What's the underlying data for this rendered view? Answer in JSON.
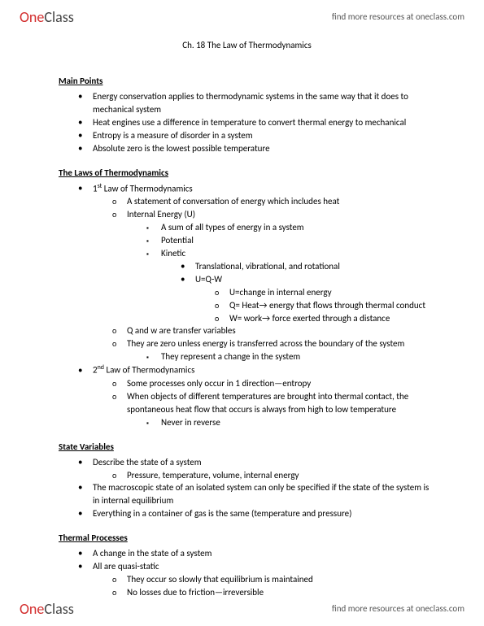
{
  "brand": {
    "one": "One",
    "class": "Class"
  },
  "resources_link": "find more resources at oneclass.com",
  "title": "Ch. 18 The Law of Thermodynamics",
  "sections": {
    "main_points": {
      "heading": "Main Points",
      "items": [
        "Energy conservation applies to thermodynamic systems in the same way that it does to mechanical system",
        "Heat engines use a difference in temperature to convert thermal energy to mechanical",
        "Entropy is a measure of disorder in a system",
        "Absolute zero is the lowest possible temperature"
      ]
    },
    "laws": {
      "heading": "The Laws of Thermodynamics",
      "first": {
        "label_pre": "1",
        "label_sup": "st",
        "label_post": " Law of Thermodynamics",
        "b1": "A statement of conversation of energy which includes heat",
        "b2": "Internal Energy (U)",
        "b2a": "A sum of all types of energy in a system",
        "b2b": "Potential",
        "b2c": "Kinetic",
        "b2c1": "Translational, vibrational, and rotational",
        "b2c2": "U=Q-W",
        "b2c2a": "U=change in internal energy",
        "b2c2b": "Q= Heat→ energy that flows through thermal conduct",
        "b2c2c": "W= work→ force exerted through a distance",
        "b3": "Q and w are transfer variables",
        "b4": "They are zero unless energy is transferred across the boundary of the system",
        "b4a": "They represent a change in the system"
      },
      "second": {
        "label_pre": "2",
        "label_sup": "nd",
        "label_post": " Law of Thermodynamics",
        "b1": "Some processes only occur in 1 direction—entropy",
        "b2": "When objects of different temperatures are brought into thermal contact, the spontaneous heat flow that occurs is always from high to low temperature",
        "b2a": "Never in reverse"
      }
    },
    "state_vars": {
      "heading": "State Variables",
      "i1": "Describe the state of a system",
      "i1a": "Pressure, temperature, volume, internal energy",
      "i2": "The macroscopic state of an isolated system can only be specified if the state of the system is in internal equilibrium",
      "i3": "Everything in a container of gas is the same (temperature and pressure)"
    },
    "thermal": {
      "heading": "Thermal Processes",
      "i1": "A change in the state of a system",
      "i2": "All are quasi-static",
      "i2a": "They occur so slowly that equilibrium is maintained",
      "i2b": "No losses due to friction—irreversible"
    }
  }
}
